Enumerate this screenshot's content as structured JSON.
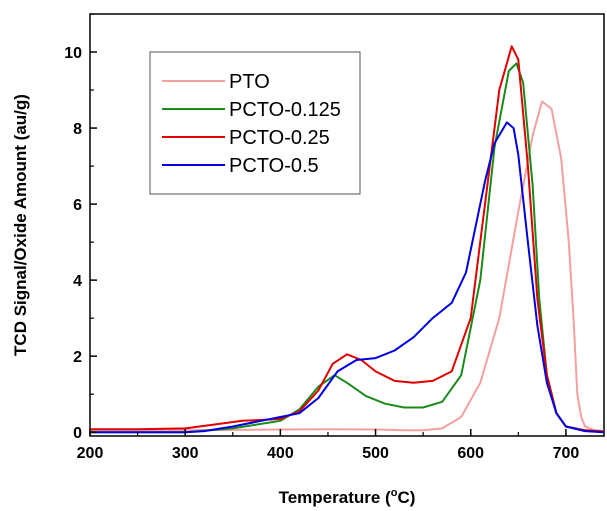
{
  "chart_data": {
    "type": "line",
    "xlabel": "Temperature (",
    "xlabel_sup": "o",
    "xlabel_unit": "C)",
    "ylabel": "TCD Signal/Oxide Amount (au/g)",
    "xlim": [
      200,
      740
    ],
    "ylim": [
      -0.1,
      11.0
    ],
    "xticks": [
      200,
      300,
      400,
      500,
      600,
      700
    ],
    "yticks": [
      0,
      2,
      4,
      6,
      8,
      10
    ],
    "grid": false,
    "legend_position": "upper-left",
    "series": [
      {
        "name": "PTO",
        "color": "#f4a0a0",
        "x": [
          200,
          300,
          400,
          450,
          500,
          530,
          550,
          570,
          590,
          610,
          630,
          650,
          665,
          675,
          685,
          695,
          703,
          708,
          712,
          716,
          720,
          730,
          740
        ],
        "y": [
          0.05,
          0.05,
          0.07,
          0.08,
          0.07,
          0.05,
          0.05,
          0.1,
          0.4,
          1.3,
          3.0,
          5.8,
          7.8,
          8.7,
          8.5,
          7.2,
          5.0,
          3.0,
          1.0,
          0.4,
          0.15,
          0.05,
          0.03
        ]
      },
      {
        "name": "PCTO-0.125",
        "color": "#1a8a1a",
        "x": [
          200,
          300,
          350,
          400,
          420,
          440,
          457,
          470,
          490,
          510,
          530,
          550,
          570,
          590,
          610,
          625,
          640,
          648,
          655,
          665,
          672,
          680,
          690,
          700,
          720,
          740
        ],
        "y": [
          0.0,
          0.0,
          0.1,
          0.3,
          0.6,
          1.2,
          1.5,
          1.3,
          0.95,
          0.75,
          0.65,
          0.65,
          0.8,
          1.5,
          4.0,
          7.5,
          9.5,
          9.7,
          9.2,
          6.5,
          3.5,
          1.5,
          0.5,
          0.15,
          0.05,
          0.0
        ]
      },
      {
        "name": "PCTO-0.25",
        "color": "#e00000",
        "x": [
          200,
          250,
          300,
          330,
          360,
          380,
          400,
          420,
          440,
          455,
          470,
          485,
          500,
          520,
          540,
          560,
          580,
          600,
          615,
          630,
          643,
          650,
          660,
          670,
          680,
          690,
          700,
          720,
          740
        ],
        "y": [
          0.08,
          0.08,
          0.1,
          0.2,
          0.3,
          0.32,
          0.35,
          0.55,
          1.1,
          1.8,
          2.05,
          1.9,
          1.6,
          1.35,
          1.3,
          1.35,
          1.6,
          3.0,
          6.0,
          9.0,
          10.15,
          9.8,
          7.0,
          3.5,
          1.5,
          0.5,
          0.15,
          0.05,
          0.02
        ]
      },
      {
        "name": "PCTO-0.5",
        "color": "#0000e0",
        "x": [
          200,
          300,
          320,
          350,
          380,
          400,
          420,
          440,
          460,
          480,
          500,
          520,
          540,
          560,
          580,
          595,
          605,
          615,
          625,
          638,
          645,
          650,
          660,
          670,
          680,
          690,
          700,
          720,
          740
        ],
        "y": [
          0.0,
          0.0,
          0.03,
          0.15,
          0.3,
          0.4,
          0.5,
          0.9,
          1.6,
          1.9,
          1.95,
          2.15,
          2.5,
          3.0,
          3.4,
          4.2,
          5.4,
          6.6,
          7.6,
          8.15,
          8.0,
          7.3,
          5.0,
          2.8,
          1.3,
          0.5,
          0.15,
          0.03,
          0.0
        ]
      }
    ]
  }
}
